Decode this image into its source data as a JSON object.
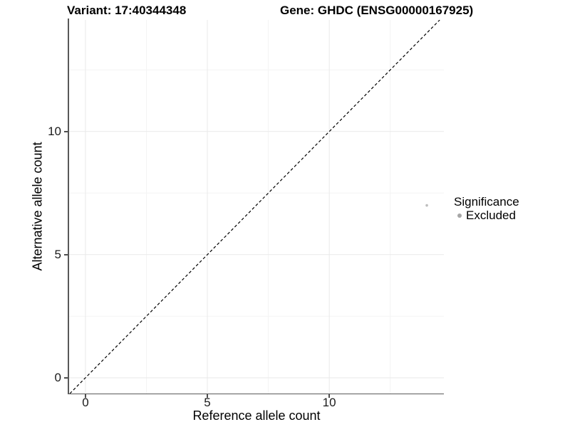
{
  "titles": {
    "variant": "Variant: 17:40344348",
    "gene": "Gene: GHDC (ENSG00000167925)"
  },
  "legend": {
    "title": "Significance",
    "items": [
      {
        "label": "Excluded",
        "color": "#a6a6a6"
      }
    ]
  },
  "style": {
    "axis_line": "#595959",
    "tick_mark": "#4d4d4d",
    "grid_major": "#e9e9e9",
    "grid_minor": "#f4f4f4",
    "dashed_line": "#000000",
    "point_color": "#bdbdbd",
    "legend_key_color": "#a6a6a6"
  },
  "chart_data": {
    "type": "scatter",
    "title": "Variant: 17:40344348 — Gene: GHDC (ENSG00000167925)",
    "xlabel": "Reference allele count",
    "ylabel": "Alternative allele count",
    "xlim": [
      -0.67,
      14.7
    ],
    "ylim": [
      -0.64,
      14.53
    ],
    "x_ticks": [
      0,
      5,
      10
    ],
    "y_ticks": [
      0,
      5,
      10
    ],
    "grid": "major+minor",
    "legend_position": "right",
    "reference_line": {
      "type": "identity",
      "equation": "y = x",
      "style": "dashed",
      "color": "#000000"
    },
    "series": [
      {
        "name": "Excluded",
        "color": "#bdbdbd",
        "point_radius_px": 1.8,
        "points": [
          {
            "x": 14,
            "y": 7,
            "significance": "Excluded"
          }
        ]
      }
    ]
  }
}
